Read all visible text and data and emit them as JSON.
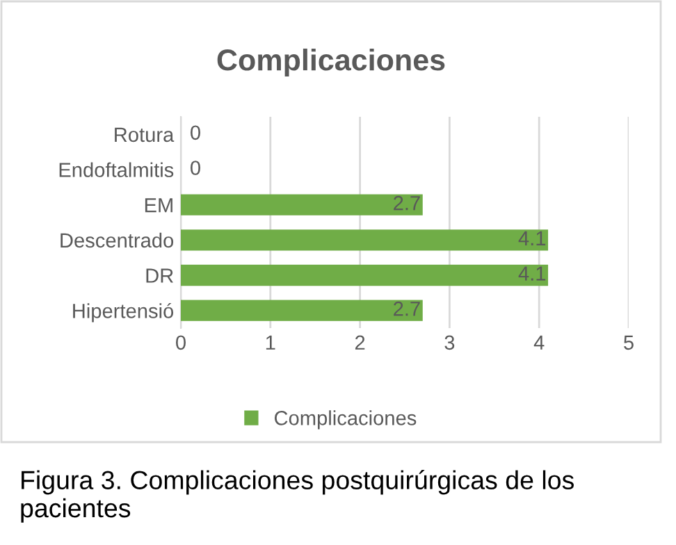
{
  "chart_data": {
    "type": "bar",
    "orientation": "horizontal",
    "title": "Complicaciones",
    "categories": [
      "Rotura",
      "Endoftalmitis",
      "EM",
      "Descentrado",
      "DR",
      "Hipertensió"
    ],
    "series": [
      {
        "name": "Complicaciones",
        "color": "#70ad47",
        "values": [
          0,
          0,
          2.7,
          4.1,
          4.1,
          2.7
        ]
      }
    ],
    "xlim": [
      0,
      5
    ],
    "xticks": [
      0,
      1,
      2,
      3,
      4,
      5
    ],
    "grid": "x",
    "legend": "bottom",
    "data_labels": true,
    "annotations": [
      "Figura 3. Complicaciones postquirúrgicas de los pacientes"
    ]
  }
}
